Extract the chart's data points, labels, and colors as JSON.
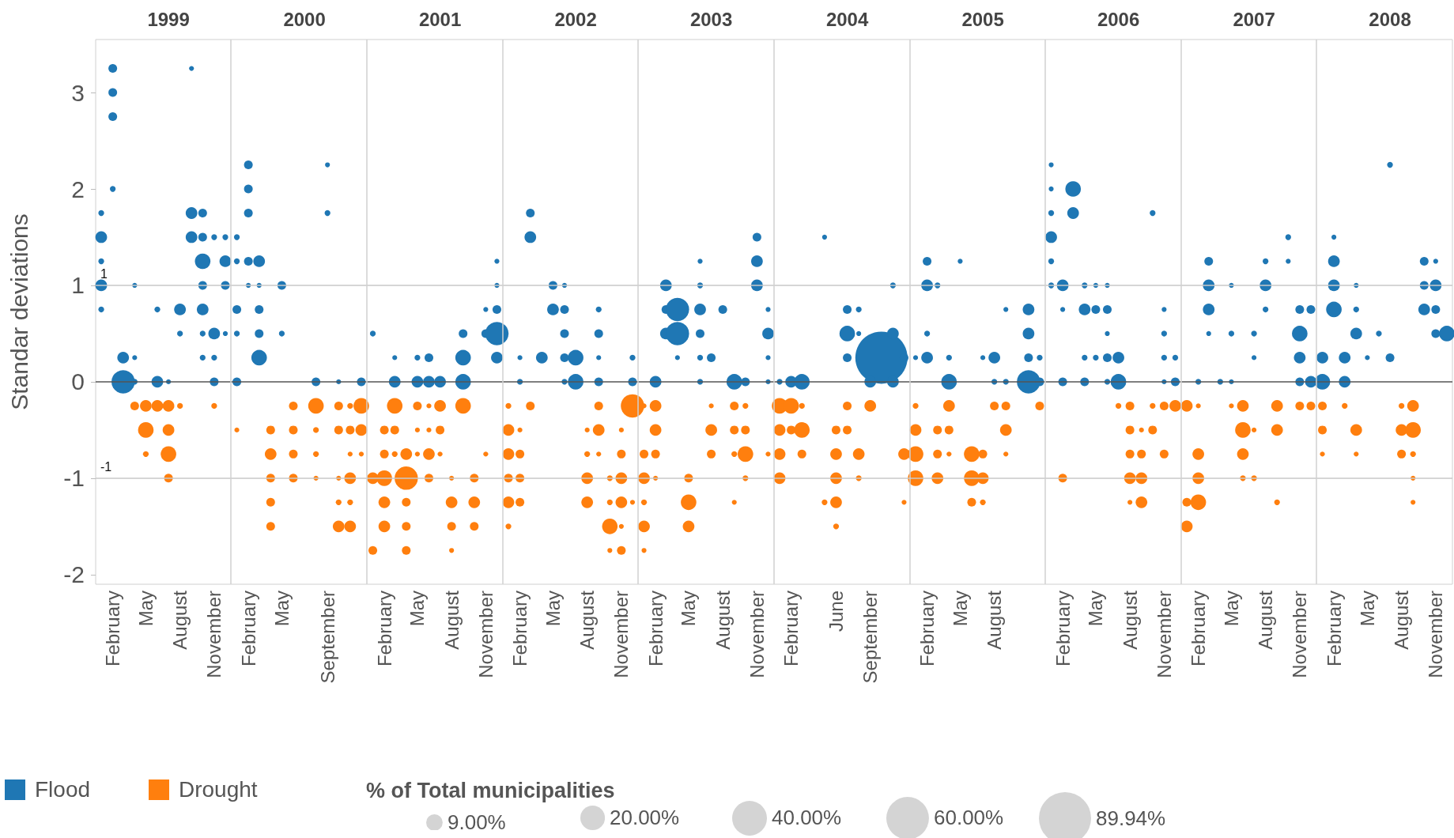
{
  "chart_data": {
    "type": "bubble",
    "ylabel": "Standar deviations",
    "legend": "bottom",
    "legend_title": "% of Total municipalities",
    "marker": "circle",
    "grid": false,
    "size_legend": [
      {
        "value": 9,
        "label": "9.00%"
      },
      {
        "value": 20,
        "label": "20.00%"
      },
      {
        "value": 40,
        "label": "40.00%"
      },
      {
        "value": 60,
        "label": "60.00%"
      },
      {
        "value": 89.94,
        "label": "89.94%"
      }
    ],
    "xlim": [
      "1998-12-17",
      "2008-12-16"
    ],
    "xticks": [
      {
        "value": "1999-02",
        "label": "February"
      },
      {
        "value": "1999-05",
        "label": "May"
      },
      {
        "value": "1999-08",
        "label": "August"
      },
      {
        "value": "1999-11",
        "label": "November"
      },
      {
        "value": "2000-02",
        "label": "February"
      },
      {
        "value": "2000-05",
        "label": "May"
      },
      {
        "value": "2000-09",
        "label": "September"
      },
      {
        "value": "2001-02",
        "label": "February"
      },
      {
        "value": "2001-05",
        "label": "May"
      },
      {
        "value": "2001-08",
        "label": "August"
      },
      {
        "value": "2001-11",
        "label": "November"
      },
      {
        "value": "2002-02",
        "label": "February"
      },
      {
        "value": "2002-05",
        "label": "May"
      },
      {
        "value": "2002-08",
        "label": "August"
      },
      {
        "value": "2002-11",
        "label": "November"
      },
      {
        "value": "2003-02",
        "label": "February"
      },
      {
        "value": "2003-05",
        "label": "May"
      },
      {
        "value": "2003-08",
        "label": "August"
      },
      {
        "value": "2003-11",
        "label": "November"
      },
      {
        "value": "2004-02",
        "label": "February"
      },
      {
        "value": "2004-06",
        "label": "June"
      },
      {
        "value": "2004-09",
        "label": "September"
      },
      {
        "value": "2005-02",
        "label": "February"
      },
      {
        "value": "2005-05",
        "label": "May"
      },
      {
        "value": "2005-08",
        "label": "August"
      },
      {
        "value": "2006-02",
        "label": "February"
      },
      {
        "value": "2006-05",
        "label": "May"
      },
      {
        "value": "2006-08",
        "label": "August"
      },
      {
        "value": "2006-11",
        "label": "November"
      },
      {
        "value": "2007-02",
        "label": "February"
      },
      {
        "value": "2007-05",
        "label": "May"
      },
      {
        "value": "2007-08",
        "label": "August"
      },
      {
        "value": "2007-11",
        "label": "November"
      },
      {
        "value": "2008-02",
        "label": "February"
      },
      {
        "value": "2008-05",
        "label": "May"
      },
      {
        "value": "2008-08",
        "label": "August"
      },
      {
        "value": "2008-11",
        "label": "November"
      }
    ],
    "x2lim": [
      "1998-12-17",
      "2008-12-16"
    ],
    "x2ticks": [
      {
        "value": "1999-07-01",
        "label": "1999"
      },
      {
        "value": "2000-07-01",
        "label": "2000"
      },
      {
        "value": "2001-07-01",
        "label": "2001"
      },
      {
        "value": "2002-07-01",
        "label": "2002"
      },
      {
        "value": "2003-07-01",
        "label": "2003"
      },
      {
        "value": "2004-07-01",
        "label": "2004"
      },
      {
        "value": "2005-07-01",
        "label": "2005"
      },
      {
        "value": "2006-07-01",
        "label": "2006"
      },
      {
        "value": "2007-07-01",
        "label": "2007"
      },
      {
        "value": "2008-07-01",
        "label": "2008"
      }
    ],
    "ylim": [
      -2.1,
      3.55
    ],
    "yticks": [
      -2,
      -1,
      0,
      1,
      2,
      3
    ],
    "ref_lines": [
      {
        "axis": "y",
        "value": 1,
        "label": "1",
        "color": "#c8c8c8"
      },
      {
        "axis": "y",
        "value": -1,
        "label": "-1",
        "color": "#c8c8c8"
      },
      {
        "axis": "y",
        "value": 0,
        "label": null,
        "color": "#555555"
      },
      {
        "axis": "x",
        "value": "1999-12-16",
        "label": null,
        "color": "#d0d0d0"
      },
      {
        "axis": "x",
        "value": "2000-12-16",
        "label": null,
        "color": "#d0d0d0"
      },
      {
        "axis": "x",
        "value": "2001-12-16",
        "label": null,
        "color": "#d0d0d0"
      },
      {
        "axis": "x",
        "value": "2002-12-16",
        "label": null,
        "color": "#d0d0d0"
      },
      {
        "axis": "x",
        "value": "2003-12-16",
        "label": null,
        "color": "#d0d0d0"
      },
      {
        "axis": "x",
        "value": "2004-12-16",
        "label": null,
        "color": "#d0d0d0"
      },
      {
        "axis": "x",
        "value": "2005-12-16",
        "label": null,
        "color": "#d0d0d0"
      },
      {
        "axis": "x",
        "value": "2006-12-16",
        "label": null,
        "color": "#d0d0d0"
      },
      {
        "axis": "x",
        "value": "2007-12-16",
        "label": null,
        "color": "#d0d0d0"
      }
    ],
    "series": [
      {
        "name": "Flood",
        "color": "#1f77b4",
        "x": [
          "2004-10",
          "1999-02",
          "1999-02",
          "1999-02",
          "1999-02",
          "1999-01",
          "1999-01",
          "1999-01",
          "1999-01",
          "1999-01",
          "1999-03",
          "1999-03",
          "1999-04",
          "1999-04",
          "1999-04",
          "1999-06",
          "1999-06",
          "1999-07",
          "1999-08",
          "1999-08",
          "1999-09",
          "1999-09",
          "1999-09",
          "1999-10",
          "1999-10",
          "1999-10",
          "1999-10",
          "1999-10",
          "1999-10",
          "1999-10",
          "1999-11",
          "1999-11",
          "1999-11",
          "1999-11",
          "1999-12",
          "1999-12",
          "1999-12",
          "1999-12",
          "2000-01",
          "2000-01",
          "2000-01",
          "2000-01",
          "2000-01",
          "2000-02",
          "2000-02",
          "2000-02",
          "2000-02",
          "2000-02",
          "2000-03",
          "2000-03",
          "2000-03",
          "2000-03",
          "2000-03",
          "2000-05",
          "2000-05",
          "2000-08",
          "2000-09",
          "2000-09",
          "2000-10",
          "2000-12",
          "2001-01",
          "2001-03",
          "2001-03",
          "2001-05",
          "2001-06",
          "2001-05",
          "2001-06",
          "2001-07",
          "2001-09",
          "2001-09",
          "2001-09",
          "2001-11",
          "2001-11",
          "2001-12",
          "2001-12",
          "2001-12",
          "2001-12",
          "2001-12",
          "2002-03",
          "2002-03",
          "2002-02",
          "2002-02",
          "2002-04",
          "2002-05",
          "2002-06",
          "2002-05",
          "2002-06",
          "2002-06",
          "2002-06",
          "2002-07",
          "2002-06",
          "2002-07",
          "2002-09",
          "2002-09",
          "2002-09",
          "2002-09",
          "2002-12",
          "2002-12",
          "2003-02",
          "2003-03",
          "2003-03",
          "2003-04",
          "2003-03",
          "2003-04",
          "2003-04",
          "2003-06",
          "2003-06",
          "2003-06",
          "2003-06",
          "2003-06",
          "2003-06",
          "2003-07",
          "2003-08",
          "2003-09",
          "2003-10",
          "2003-11",
          "2003-11",
          "2003-11",
          "2003-12",
          "2003-12",
          "2003-12",
          "2003-12",
          "2004-01",
          "2004-02",
          "2004-03",
          "2004-05",
          "2004-07",
          "2004-08",
          "2004-07",
          "2004-08",
          "2004-07",
          "2004-09",
          "2004-11",
          "2004-11",
          "2004-11",
          "2004-12",
          "2005-02",
          "2005-02",
          "2005-03",
          "2005-05",
          "2005-02",
          "2005-01",
          "2005-02",
          "2005-04",
          "2005-04",
          "2005-07",
          "2005-08",
          "2005-08",
          "2005-09",
          "2005-09",
          "2005-11",
          "2005-11",
          "2005-11",
          "2005-11",
          "2005-12",
          "2005-12",
          "2006-01",
          "2006-01",
          "2006-01",
          "2006-01",
          "2006-01",
          "2006-01",
          "2006-02",
          "2006-02",
          "2006-02",
          "2006-03",
          "2006-03",
          "2006-04",
          "2006-04",
          "2006-04",
          "2006-04",
          "2006-05",
          "2006-05",
          "2006-05",
          "2006-06",
          "2006-06",
          "2006-06",
          "2006-06",
          "2006-06",
          "2006-07",
          "2006-07",
          "2006-10",
          "2006-11",
          "2006-11",
          "2006-11",
          "2006-11",
          "2006-12",
          "2006-12",
          "2007-02",
          "2007-03",
          "2007-03",
          "2007-03",
          "2007-03",
          "2007-04",
          "2007-05",
          "2007-05",
          "2007-05",
          "2007-07",
          "2007-07",
          "2007-08",
          "2007-08",
          "2007-08",
          "2007-10",
          "2007-10",
          "2007-11",
          "2007-11",
          "2007-11",
          "2007-11",
          "2007-12",
          "2007-12",
          "2008-01",
          "2008-01",
          "2008-02",
          "2008-02",
          "2008-02",
          "2008-02",
          "2008-03",
          "2008-03",
          "2008-04",
          "2008-04",
          "2008-04",
          "2008-05",
          "2008-06",
          "2008-07",
          "2008-07",
          "2008-10",
          "2008-10",
          "2008-10",
          "2008-11",
          "2008-11",
          "2008-11",
          "2008-11",
          "2008-12"
        ],
        "values": [
          0.25,
          3.25,
          3,
          2.75,
          2,
          1.75,
          1.5,
          1.25,
          1,
          0.75,
          0.25,
          0,
          0.25,
          0,
          1,
          0.75,
          0,
          0,
          0.75,
          0.5,
          3.25,
          1.75,
          1.5,
          1.75,
          1.5,
          1.25,
          1,
          0.75,
          0.5,
          0.25,
          1.5,
          0.5,
          0.25,
          0,
          1.5,
          1.25,
          1,
          0.5,
          1.5,
          1.25,
          0.75,
          0.5,
          0,
          2.25,
          2,
          1.75,
          1.25,
          1,
          1.25,
          1,
          0.75,
          0.5,
          0.25,
          1,
          0.5,
          0,
          2.25,
          1.75,
          0,
          0,
          0.5,
          0.25,
          0,
          0.25,
          0.25,
          0,
          0,
          0,
          0.5,
          0.25,
          0,
          0.5,
          0.75,
          1.25,
          1,
          0.75,
          0.5,
          0.25,
          1.75,
          1.5,
          0.25,
          0,
          0.25,
          1,
          1,
          0.75,
          0.75,
          0.5,
          0.25,
          0.25,
          0,
          0,
          0.75,
          0.5,
          0.25,
          0,
          0.25,
          0,
          0,
          1,
          0.75,
          0.75,
          0.5,
          0.5,
          0.25,
          1.25,
          1,
          0.75,
          0.5,
          0.25,
          0,
          0.25,
          0.75,
          0,
          0,
          1.5,
          1.25,
          1,
          0.75,
          0.5,
          0.25,
          0,
          0,
          0,
          0,
          1.5,
          0.75,
          0.75,
          0.5,
          0.5,
          0.25,
          0,
          0.5,
          1,
          0,
          0.25,
          1.25,
          1,
          1,
          1.25,
          0.5,
          0.25,
          0.25,
          0.25,
          0,
          0.25,
          0.25,
          0,
          0.75,
          0,
          0.75,
          0.5,
          0.25,
          0,
          0.25,
          0,
          2.25,
          2,
          1.75,
          1.5,
          1.25,
          1,
          1,
          0.75,
          0,
          2,
          1.75,
          1,
          0.75,
          0.25,
          0,
          1,
          0.75,
          0.25,
          1,
          0.75,
          0.5,
          0.25,
          0,
          0.25,
          0,
          1.75,
          0.75,
          0.5,
          0.25,
          0,
          0.25,
          0,
          0,
          1.25,
          1,
          0.75,
          0.5,
          0,
          0,
          1,
          0.5,
          0.5,
          0.25,
          1.25,
          1,
          0.75,
          1.5,
          1.25,
          0.75,
          0.5,
          0.25,
          0,
          0.75,
          0,
          0,
          0.25,
          1.5,
          1.25,
          1,
          0.75,
          0.25,
          0,
          1,
          0.75,
          0.5,
          0.25,
          0.5,
          2.25,
          0.25,
          1.25,
          1,
          0.75,
          1.25,
          1,
          0.75,
          0.5,
          0.5
        ],
        "sizes": [
          89.94,
          2.5,
          2.5,
          2.5,
          1.1,
          1.1,
          4.5,
          1.1,
          4.5,
          1.1,
          4.5,
          18,
          0.8,
          1.1,
          0.8,
          1.1,
          4.5,
          0.8,
          4.5,
          1.1,
          0.8,
          4.5,
          4.5,
          2.5,
          2.5,
          8,
          2.5,
          4.5,
          1.1,
          1.1,
          1.1,
          4.5,
          1.1,
          2.5,
          1.1,
          4.5,
          2.5,
          0.8,
          1.1,
          1.1,
          2.5,
          1.1,
          2.5,
          2.5,
          2.5,
          2.5,
          2.5,
          0.8,
          4.5,
          0.8,
          2.5,
          2.5,
          8,
          2.5,
          1.1,
          2.5,
          0.8,
          1.1,
          0.8,
          2.5,
          1.1,
          0.8,
          4.5,
          1.1,
          2.5,
          4.5,
          4.5,
          4.5,
          2.5,
          8,
          8,
          2.5,
          0.8,
          0.8,
          0.8,
          2.5,
          18,
          4.5,
          2.5,
          4.5,
          0.8,
          1.1,
          4.5,
          2.5,
          0.8,
          4.5,
          2.5,
          2.5,
          2.5,
          8,
          1.1,
          8,
          1.1,
          2.5,
          0.8,
          2.5,
          1.1,
          2.5,
          4.5,
          4.5,
          2.5,
          18,
          4.5,
          18,
          0.8,
          0.8,
          1.1,
          4.5,
          2.5,
          1.1,
          1.1,
          2.5,
          2.5,
          8,
          2.5,
          2.5,
          4.5,
          4.5,
          0.8,
          4.5,
          0.8,
          0.8,
          1.1,
          4.5,
          8,
          0.8,
          2.5,
          1.1,
          8,
          0.8,
          2.5,
          4.5,
          4.5,
          1.1,
          4.5,
          2.5,
          2.5,
          4.5,
          1.1,
          0.8,
          1.1,
          0.8,
          4.5,
          1.1,
          8,
          0.8,
          4.5,
          1.1,
          0.8,
          1.1,
          4.5,
          4.5,
          2.5,
          18,
          1.1,
          2.5,
          0.8,
          0.8,
          1.1,
          4.5,
          1.1,
          1.1,
          4.5,
          0.8,
          2.5,
          8,
          4.5,
          1.1,
          4.5,
          1.1,
          2.5,
          0.8,
          2.5,
          1.1,
          0.8,
          2.5,
          0.8,
          2.5,
          1.1,
          4.5,
          8,
          1.1,
          0.8,
          1.1,
          1.1,
          0.8,
          1.1,
          2.5,
          1.1,
          2.5,
          4.5,
          4.5,
          0.8,
          1.1,
          0.8,
          0.8,
          1.1,
          1.1,
          0.8,
          1.1,
          4.5,
          1.1,
          1.1,
          0.8,
          2.5,
          8,
          4.5,
          2.5,
          2.5,
          4.5,
          8,
          4.5,
          0.8,
          4.5,
          4.5,
          8,
          4.5,
          4.5,
          0.8,
          1.1,
          4.5,
          0.8,
          1.1,
          1.1,
          2.5,
          2.5,
          2.5,
          4.5,
          0.8,
          4.5,
          2.5,
          2.5,
          8
        ]
      },
      {
        "name": "Drought",
        "color": "#ff7f0e",
        "x": [
          "1999-04",
          "1999-05",
          "1999-06",
          "1999-07",
          "1999-08",
          "1999-11",
          "1999-05",
          "1999-07",
          "1999-05",
          "1999-07",
          "1999-07",
          "2000-01",
          "2000-04",
          "2000-04",
          "2000-04",
          "2000-04",
          "2000-04",
          "2000-06",
          "2000-08",
          "2000-06",
          "2000-08",
          "2000-06",
          "2000-08",
          "2000-06",
          "2000-08",
          "2000-10",
          "2000-11",
          "2000-12",
          "2000-10",
          "2000-11",
          "2000-12",
          "2000-11",
          "2000-12",
          "2000-10",
          "2000-11",
          "2000-10",
          "2000-11",
          "2000-10",
          "2000-11",
          "2001-01",
          "2001-02",
          "2001-04",
          "2001-06",
          "2001-08",
          "2001-10",
          "2001-03",
          "2001-05",
          "2001-06",
          "2001-07",
          "2001-09",
          "2001-02",
          "2001-03",
          "2001-05",
          "2001-06",
          "2001-07",
          "2001-02",
          "2001-03",
          "2001-04",
          "2001-05",
          "2001-06",
          "2001-07",
          "2001-11",
          "2001-02",
          "2001-04",
          "2001-08",
          "2001-10",
          "2001-02",
          "2001-04",
          "2001-08",
          "2001-10",
          "2001-01",
          "2001-04",
          "2001-08",
          "2002-01",
          "2002-03",
          "2002-09",
          "2002-12",
          "2002-02",
          "2002-01",
          "2002-08",
          "2002-09",
          "2002-11",
          "2002-01",
          "2002-02",
          "2002-08",
          "2002-09",
          "2002-11",
          "2002-01",
          "2002-02",
          "2002-08",
          "2002-10",
          "2002-11",
          "2002-01",
          "2002-02",
          "2002-08",
          "2002-10",
          "2002-11",
          "2002-12",
          "2002-01",
          "2002-10",
          "2002-11",
          "2002-10",
          "2002-11",
          "2003-01",
          "2003-02",
          "2003-07",
          "2003-09",
          "2003-10",
          "2003-02",
          "2003-07",
          "2003-09",
          "2003-10",
          "2003-01",
          "2003-02",
          "2003-07",
          "2003-09",
          "2003-10",
          "2003-12",
          "2003-01",
          "2003-02",
          "2003-05",
          "2003-10",
          "2003-01",
          "2003-05",
          "2003-09",
          "2003-01",
          "2003-05",
          "2003-01",
          "2004-01",
          "2004-02",
          "2004-03",
          "2004-07",
          "2004-09",
          "2004-01",
          "2004-02",
          "2004-03",
          "2004-06",
          "2004-07",
          "2004-01",
          "2004-03",
          "2004-06",
          "2004-08",
          "2004-12",
          "2004-01",
          "2004-06",
          "2004-08",
          "2004-05",
          "2004-06",
          "2004-12",
          "2004-06",
          "2005-01",
          "2005-04",
          "2005-08",
          "2005-09",
          "2005-12",
          "2005-01",
          "2005-03",
          "2005-04",
          "2005-09",
          "2005-01",
          "2005-03",
          "2005-04",
          "2005-06",
          "2005-07",
          "2005-09",
          "2005-01",
          "2005-03",
          "2005-06",
          "2005-07",
          "2005-06",
          "2005-07",
          "2006-02",
          "2006-07",
          "2006-08",
          "2006-10",
          "2006-11",
          "2006-12",
          "2006-08",
          "2006-09",
          "2006-10",
          "2006-08",
          "2006-09",
          "2006-11",
          "2006-08",
          "2006-09",
          "2006-08",
          "2006-09",
          "2007-01",
          "2007-02",
          "2007-02",
          "2007-02",
          "2007-01",
          "2007-02",
          "2007-01",
          "2007-05",
          "2007-06",
          "2007-06",
          "2007-07",
          "2007-06",
          "2007-06",
          "2007-07",
          "2007-09",
          "2007-09",
          "2007-09",
          "2007-11",
          "2007-12",
          "2008-01",
          "2008-01",
          "2008-01",
          "2008-03",
          "2008-04",
          "2008-04",
          "2008-08",
          "2008-09",
          "2008-08",
          "2008-09",
          "2008-08",
          "2008-09",
          "2008-09",
          "2008-09"
        ],
        "values": [
          -0.25,
          -0.25,
          -0.25,
          -0.25,
          -0.25,
          -0.25,
          -0.5,
          -0.5,
          -0.75,
          -0.75,
          -1,
          -0.5,
          -0.5,
          -0.75,
          -1,
          -1.25,
          -1.5,
          -0.25,
          -0.25,
          -0.5,
          -0.5,
          -0.75,
          -0.75,
          -1,
          -1,
          -0.25,
          -0.25,
          -0.25,
          -0.5,
          -0.5,
          -0.5,
          -0.75,
          -0.75,
          -1,
          -1,
          -1.25,
          -1.25,
          -1.5,
          -1.5,
          -1,
          -1,
          -1,
          -1,
          -1,
          -1,
          -0.25,
          -0.25,
          -0.25,
          -0.25,
          -0.25,
          -0.5,
          -0.5,
          -0.5,
          -0.5,
          -0.5,
          -0.75,
          -0.75,
          -0.75,
          -0.75,
          -0.75,
          -0.75,
          -0.75,
          -1.25,
          -1.25,
          -1.25,
          -1.25,
          -1.5,
          -1.5,
          -1.5,
          -1.5,
          -1.75,
          -1.75,
          -1.75,
          -0.25,
          -0.25,
          -0.25,
          -0.25,
          -0.5,
          -0.5,
          -0.5,
          -0.5,
          -0.5,
          -0.75,
          -0.75,
          -0.75,
          -0.75,
          -0.75,
          -1,
          -1,
          -1,
          -1,
          -1,
          -1.25,
          -1.25,
          -1.25,
          -1.25,
          -1.25,
          -1.25,
          -1.5,
          -1.5,
          -1.5,
          -1.75,
          -1.75,
          -0.25,
          -0.25,
          -0.25,
          -0.25,
          -0.25,
          -0.5,
          -0.5,
          -0.5,
          -0.5,
          -0.75,
          -0.75,
          -0.75,
          -0.75,
          -0.75,
          -0.75,
          -1,
          -1,
          -1,
          -1,
          -1.25,
          -1.25,
          -1.25,
          -1.5,
          -1.5,
          -1.75,
          -0.25,
          -0.25,
          -0.25,
          -0.25,
          -0.25,
          -0.5,
          -0.5,
          -0.5,
          -0.5,
          -0.5,
          -0.75,
          -0.75,
          -0.75,
          -0.75,
          -0.75,
          -1,
          -1,
          -1,
          -1.25,
          -1.25,
          -1.25,
          -1.5,
          -0.25,
          -0.25,
          -0.25,
          -0.25,
          -0.25,
          -0.5,
          -0.5,
          -0.5,
          -0.5,
          -0.75,
          -0.75,
          -0.75,
          -0.75,
          -0.75,
          -0.75,
          -1,
          -1,
          -1,
          -1,
          -1.25,
          -1.25,
          -1,
          -0.25,
          -0.25,
          -0.25,
          -0.25,
          -0.25,
          -0.5,
          -0.5,
          -0.5,
          -0.75,
          -0.75,
          -0.75,
          -1,
          -1,
          -1.25,
          -1.25,
          -0.25,
          -0.25,
          -0.75,
          -1,
          -1.25,
          -1.25,
          -1.5,
          -0.25,
          -0.25,
          -0.5,
          -0.5,
          -0.75,
          -1,
          -1,
          -0.25,
          -0.5,
          -1.25,
          -0.25,
          -0.25,
          -0.25,
          -0.5,
          -0.75,
          -0.25,
          -0.5,
          -0.75,
          -0.25,
          -0.25,
          -0.5,
          -0.5,
          -0.75,
          -0.75,
          -1,
          -1.25
        ],
        "sizes": [
          2.5,
          4.5,
          4.5,
          4.5,
          1.1,
          1.1,
          8,
          4.5,
          1.1,
          8,
          2.5,
          0.8,
          2.5,
          4.5,
          2.5,
          2.5,
          2.5,
          2.5,
          8,
          2.5,
          1.1,
          2.5,
          1.1,
          2.5,
          0.8,
          2.5,
          1.1,
          8,
          2.5,
          2.5,
          4.5,
          0.8,
          0.8,
          0.8,
          4.5,
          1.1,
          1.1,
          4.5,
          4.5,
          4.5,
          8,
          18,
          2.5,
          0.8,
          2.5,
          8,
          2.5,
          0.8,
          4.5,
          8,
          2.5,
          2.5,
          0.8,
          0.8,
          2.5,
          2.5,
          1.1,
          4.5,
          0.8,
          4.5,
          0.8,
          0.8,
          4.5,
          2.5,
          4.5,
          4.5,
          4.5,
          2.5,
          2.5,
          2.5,
          2.5,
          2.5,
          0.8,
          1.1,
          2.5,
          2.5,
          18,
          0.8,
          4.5,
          0.8,
          4.5,
          0.8,
          4.5,
          2.5,
          1.1,
          0.8,
          2.5,
          2.5,
          2.5,
          4.5,
          1.1,
          4.5,
          4.5,
          2.5,
          4.5,
          1.1,
          4.5,
          0.8,
          1.1,
          8,
          0.8,
          0.8,
          2.5,
          0.8,
          4.5,
          0.8,
          2.5,
          1.1,
          4.5,
          4.5,
          2.5,
          2.5,
          2.5,
          2.5,
          2.5,
          1.1,
          8,
          0.8,
          4.5,
          0.8,
          2.5,
          1.1,
          1.1,
          8,
          0.8,
          4.5,
          4.5,
          0.8,
          8,
          8,
          1.1,
          2.5,
          4.5,
          4.5,
          2.5,
          8,
          2.5,
          2.5,
          4.5,
          2.5,
          4.5,
          4.5,
          4.5,
          4.5,
          4.5,
          1.1,
          1.1,
          4.5,
          0.8,
          1.1,
          1.1,
          4.5,
          2.5,
          2.5,
          2.5,
          4.5,
          2.5,
          2.5,
          4.5,
          8,
          2.5,
          0.8,
          8,
          2.5,
          0.8,
          8,
          4.5,
          8,
          4.5,
          2.5,
          1.1,
          2.5,
          1.1,
          2.5,
          1.1,
          2.5,
          4.5,
          2.5,
          0.8,
          2.5,
          2.5,
          2.5,
          2.5,
          4.5,
          4.5,
          0.8,
          4.5,
          4.5,
          0.8,
          4.5,
          4.5,
          2.5,
          8,
          4.5,
          0.8,
          4.5,
          8,
          0.8,
          4.5,
          1.1,
          1.1,
          4.5,
          4.5,
          1.1,
          2.5,
          2.5,
          2.5,
          2.5,
          0.8,
          1.1,
          4.5,
          0.8,
          1.1,
          4.5,
          4.5,
          8,
          2.5,
          1.1,
          0.8,
          0.8
        ]
      }
    ]
  }
}
